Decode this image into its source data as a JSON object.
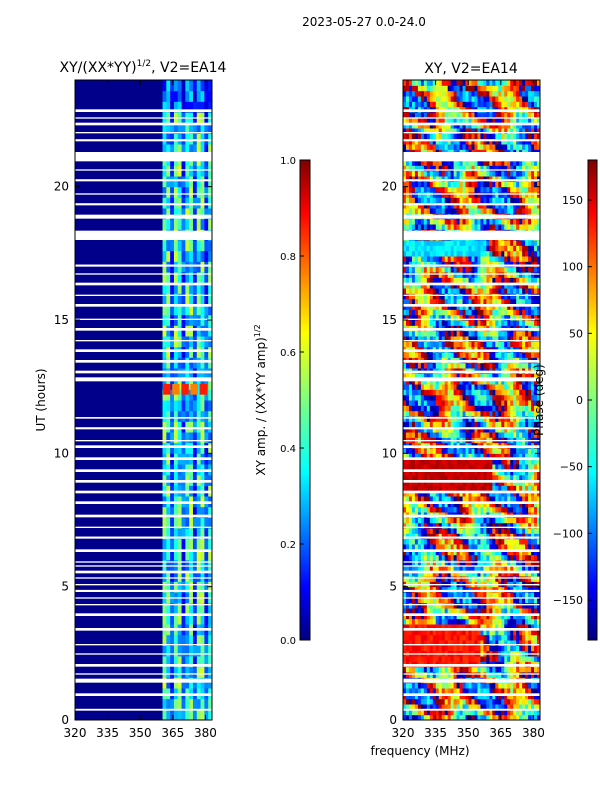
{
  "figure": {
    "suptitle": "2023-05-27 0.0-24.0",
    "xlabel": "frequency (MHz)"
  },
  "colors": {
    "jet": [
      "#00007f",
      "#0000ff",
      "#007fff",
      "#00ffff",
      "#7fff7f",
      "#ffff00",
      "#ff7f00",
      "#ff0000",
      "#7f0000"
    ],
    "dark_blue": "#00008b"
  },
  "chart_data": [
    {
      "type": "heatmap",
      "title": "XY/(XX*YY)",
      "title_sup": "1/2",
      "title_suffix": ", V2=EA14",
      "xlabel": "",
      "ylabel": "UT (hours)",
      "xlim": [
        320,
        383
      ],
      "ylim": [
        0,
        24
      ],
      "xticks": [
        320,
        335,
        350,
        365,
        380
      ],
      "yticks": [
        0,
        5,
        10,
        15,
        20
      ],
      "dominant_value": 0.05,
      "signal_band_MHz": [
        360,
        382
      ],
      "signal_values_range": [
        0.2,
        0.6
      ],
      "flare_hours": [
        12.2,
        12.6
      ],
      "flare_value": 0.85,
      "colorbar": {
        "label": "XY amp. / (XX*YY amp)",
        "label_sup": "1/2",
        "range": [
          0.0,
          1.0
        ],
        "ticks": [
          "0.0",
          "0.2",
          "0.4",
          "0.6",
          "0.8",
          "1.0"
        ]
      }
    },
    {
      "type": "heatmap",
      "title": "XY, V2=EA14",
      "xlabel": "frequency (MHz)",
      "ylabel": "",
      "xlim": [
        320,
        383
      ],
      "ylim": [
        0,
        24
      ],
      "xticks": [
        320,
        335,
        350,
        365,
        380
      ],
      "yticks": [
        0,
        5,
        10,
        15,
        20
      ],
      "value_range": [
        -180,
        180
      ],
      "colorbar": {
        "label": "Phase (deg)",
        "range": [
          -180,
          180
        ],
        "ticks": [
          "150",
          "100",
          "50",
          "0",
          "−50",
          "−100",
          "−150"
        ]
      }
    }
  ],
  "flag_gaps_hours": [
    [
      0.35,
      0.42
    ],
    [
      0.9,
      1.0
    ],
    [
      1.4,
      1.55
    ],
    [
      1.7,
      1.75
    ],
    [
      2.0,
      2.1
    ],
    [
      2.45,
      2.5
    ],
    [
      2.8,
      2.85
    ],
    [
      3.35,
      3.45
    ],
    [
      3.9,
      4.0
    ],
    [
      4.3,
      4.35
    ],
    [
      4.55,
      4.6
    ],
    [
      4.8,
      4.88
    ],
    [
      5.05,
      5.1
    ],
    [
      5.3,
      5.35
    ],
    [
      5.5,
      5.6
    ],
    [
      5.75,
      5.8
    ],
    [
      5.9,
      5.95
    ],
    [
      6.3,
      6.4
    ],
    [
      6.8,
      6.88
    ],
    [
      7.2,
      7.25
    ],
    [
      7.6,
      7.7
    ],
    [
      8.1,
      8.2
    ],
    [
      8.5,
      8.6
    ],
    [
      8.9,
      9.0
    ],
    [
      9.3,
      9.4
    ],
    [
      9.75,
      9.85
    ],
    [
      10.2,
      10.3
    ],
    [
      10.45,
      10.5
    ],
    [
      10.9,
      10.98
    ],
    [
      11.3,
      11.36
    ],
    [
      12.7,
      12.85
    ],
    [
      13.0,
      13.1
    ],
    [
      13.4,
      13.5
    ],
    [
      13.8,
      13.9
    ],
    [
      14.2,
      14.25
    ],
    [
      14.6,
      14.7
    ],
    [
      15.0,
      15.05
    ],
    [
      15.5,
      15.6
    ],
    [
      15.9,
      15.95
    ],
    [
      16.3,
      16.4
    ],
    [
      16.7,
      16.75
    ],
    [
      17.0,
      17.08
    ],
    [
      18.0,
      18.35
    ],
    [
      18.8,
      18.95
    ],
    [
      19.3,
      19.38
    ],
    [
      19.7,
      19.75
    ],
    [
      20.2,
      20.28
    ],
    [
      20.6,
      20.65
    ],
    [
      20.95,
      21.3
    ],
    [
      21.7,
      21.78
    ],
    [
      22.0,
      22.05
    ],
    [
      22.3,
      22.4
    ],
    [
      22.55,
      22.6
    ],
    [
      22.8,
      22.9
    ]
  ]
}
